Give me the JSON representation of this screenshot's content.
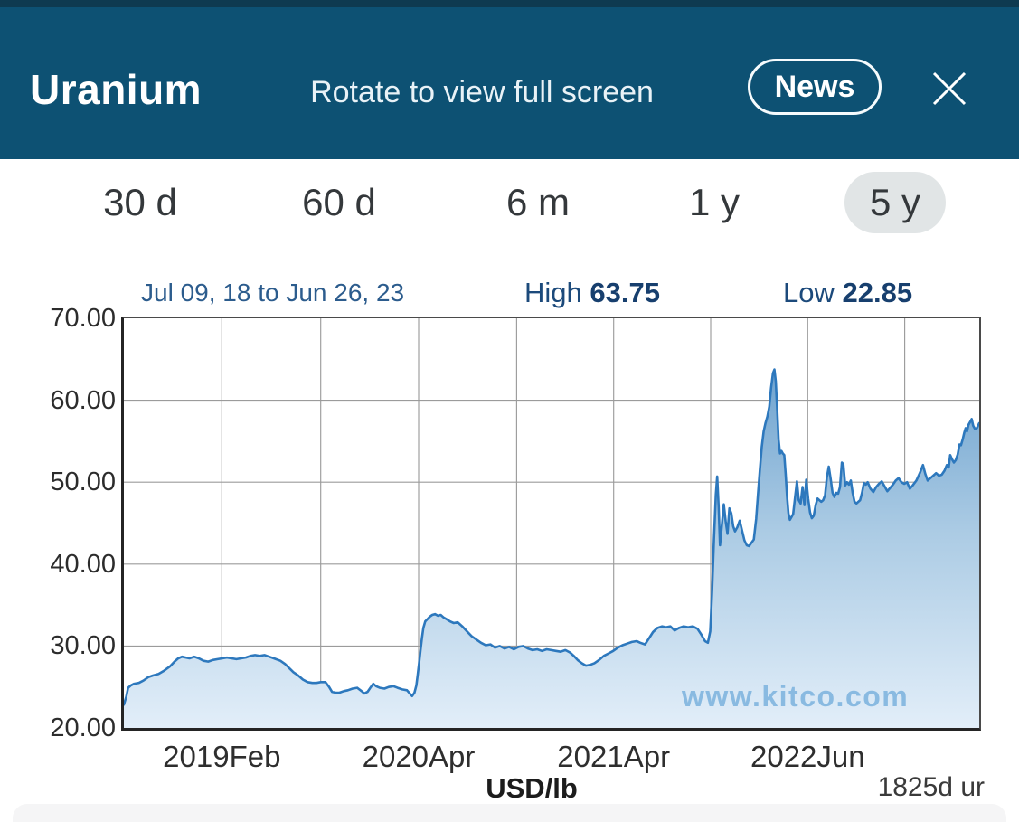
{
  "colors": {
    "statusbar_bg": "#0e3a50",
    "header_bg": "#0d5173",
    "navy": "#1c4a7b",
    "watermark": "#89bae1",
    "range_pill_bg": "#e1e5e6",
    "range_text": "#34383b"
  },
  "header": {
    "title": "Uranium",
    "subtitle": "Rotate to view full screen",
    "news_button": "News"
  },
  "ranges": {
    "items": [
      "30 d",
      "60 d",
      "6 m",
      "1 y",
      "5 y"
    ],
    "selected": "5 y"
  },
  "chart_meta": {
    "period_label": "Jul 09, 18 to Jun 26, 23",
    "high_label": "High",
    "high_value": "63.75",
    "low_label": "Low",
    "low_value": "22.85",
    "unit_label": "USD/lb",
    "duration_label": "1825d ur",
    "watermark": "www.kitco.com"
  },
  "chart_data": {
    "type": "area",
    "title": "Uranium spot price, 5 year",
    "x_start": "Jul 09, 18",
    "x_end": "Jun 26, 23",
    "x_range_days": 1825,
    "ylim": [
      20,
      70
    ],
    "ylabel": "USD/lb",
    "high": 63.75,
    "low": 22.85,
    "grid": true,
    "y_tick_labels": [
      "70.00",
      "60.00",
      "50.00",
      "40.00",
      "30.00",
      "20.00"
    ],
    "y_gridlines": [
      60,
      50,
      40,
      30
    ],
    "x_gridline_days": [
      209,
      420,
      629,
      838,
      1045,
      1252,
      1459,
      1666
    ],
    "x_labels": [
      {
        "day": 209,
        "text": "2019Feb"
      },
      {
        "day": 629,
        "text": "2020Apr"
      },
      {
        "day": 1045,
        "text": "2021Apr"
      },
      {
        "day": 1459,
        "text": "2022Jun"
      }
    ],
    "line_color": "#2d78bd",
    "fill_gradient": [
      {
        "offset": "0%",
        "color": "#6fa3cf"
      },
      {
        "offset": "45%",
        "color": "#abcbe4"
      },
      {
        "offset": "100%",
        "color": "#e2eef9"
      }
    ],
    "points": [
      [
        0,
        22.85
      ],
      [
        5,
        23.8
      ],
      [
        9,
        24.9
      ],
      [
        15,
        25.2
      ],
      [
        22,
        25.4
      ],
      [
        32,
        25.5
      ],
      [
        42,
        25.8
      ],
      [
        52,
        26.2
      ],
      [
        62,
        26.4
      ],
      [
        74,
        26.6
      ],
      [
        86,
        27.0
      ],
      [
        98,
        27.5
      ],
      [
        108,
        28.1
      ],
      [
        116,
        28.5
      ],
      [
        124,
        28.7
      ],
      [
        132,
        28.6
      ],
      [
        140,
        28.5
      ],
      [
        150,
        28.7
      ],
      [
        160,
        28.5
      ],
      [
        170,
        28.2
      ],
      [
        180,
        28.1
      ],
      [
        190,
        28.3
      ],
      [
        200,
        28.4
      ],
      [
        210,
        28.5
      ],
      [
        220,
        28.6
      ],
      [
        230,
        28.5
      ],
      [
        240,
        28.4
      ],
      [
        250,
        28.5
      ],
      [
        260,
        28.6
      ],
      [
        270,
        28.8
      ],
      [
        280,
        28.9
      ],
      [
        290,
        28.8
      ],
      [
        300,
        28.9
      ],
      [
        310,
        28.7
      ],
      [
        320,
        28.5
      ],
      [
        334,
        28.2
      ],
      [
        344,
        27.8
      ],
      [
        353,
        27.3
      ],
      [
        362,
        26.8
      ],
      [
        372,
        26.4
      ],
      [
        382,
        25.9
      ],
      [
        392,
        25.6
      ],
      [
        402,
        25.5
      ],
      [
        411,
        25.5
      ],
      [
        420,
        25.6
      ],
      [
        430,
        25.6
      ],
      [
        438,
        25.0
      ],
      [
        444,
        24.4
      ],
      [
        452,
        24.3
      ],
      [
        460,
        24.3
      ],
      [
        470,
        24.5
      ],
      [
        478,
        24.6
      ],
      [
        488,
        24.8
      ],
      [
        498,
        24.9
      ],
      [
        507,
        24.5
      ],
      [
        513,
        24.2
      ],
      [
        520,
        24.4
      ],
      [
        527,
        25.0
      ],
      [
        532,
        25.4
      ],
      [
        538,
        25.1
      ],
      [
        546,
        24.9
      ],
      [
        556,
        24.8
      ],
      [
        565,
        25.0
      ],
      [
        575,
        25.1
      ],
      [
        584,
        24.9
      ],
      [
        594,
        24.7
      ],
      [
        604,
        24.6
      ],
      [
        610,
        24.2
      ],
      [
        615,
        23.9
      ],
      [
        620,
        24.3
      ],
      [
        624,
        25.2
      ],
      [
        627,
        26.5
      ],
      [
        630,
        28.0
      ],
      [
        633,
        29.5
      ],
      [
        636,
        31.0
      ],
      [
        639,
        32.2
      ],
      [
        643,
        33.0
      ],
      [
        648,
        33.3
      ],
      [
        653,
        33.6
      ],
      [
        658,
        33.8
      ],
      [
        664,
        33.9
      ],
      [
        670,
        33.7
      ],
      [
        676,
        33.8
      ],
      [
        682,
        33.5
      ],
      [
        688,
        33.3
      ],
      [
        696,
        33.0
      ],
      [
        704,
        32.8
      ],
      [
        712,
        32.9
      ],
      [
        722,
        32.4
      ],
      [
        732,
        31.8
      ],
      [
        742,
        31.2
      ],
      [
        752,
        30.8
      ],
      [
        762,
        30.4
      ],
      [
        772,
        30.1
      ],
      [
        782,
        30.2
      ],
      [
        792,
        29.8
      ],
      [
        802,
        30.0
      ],
      [
        812,
        29.7
      ],
      [
        822,
        29.9
      ],
      [
        832,
        29.6
      ],
      [
        842,
        29.9
      ],
      [
        852,
        30.0
      ],
      [
        862,
        29.7
      ],
      [
        872,
        29.5
      ],
      [
        882,
        29.6
      ],
      [
        892,
        29.4
      ],
      [
        902,
        29.6
      ],
      [
        912,
        29.5
      ],
      [
        922,
        29.4
      ],
      [
        932,
        29.3
      ],
      [
        942,
        29.5
      ],
      [
        952,
        29.2
      ],
      [
        960,
        28.8
      ],
      [
        968,
        28.3
      ],
      [
        977,
        27.9
      ],
      [
        986,
        27.6
      ],
      [
        995,
        27.7
      ],
      [
        1004,
        27.9
      ],
      [
        1014,
        28.3
      ],
      [
        1024,
        28.8
      ],
      [
        1034,
        29.1
      ],
      [
        1044,
        29.4
      ],
      [
        1054,
        29.8
      ],
      [
        1064,
        30.1
      ],
      [
        1074,
        30.3
      ],
      [
        1084,
        30.5
      ],
      [
        1094,
        30.6
      ],
      [
        1102,
        30.4
      ],
      [
        1112,
        30.2
      ],
      [
        1120,
        30.9
      ],
      [
        1129,
        31.7
      ],
      [
        1138,
        32.2
      ],
      [
        1148,
        32.4
      ],
      [
        1157,
        32.3
      ],
      [
        1166,
        32.4
      ],
      [
        1175,
        31.9
      ],
      [
        1184,
        32.2
      ],
      [
        1194,
        32.4
      ],
      [
        1204,
        32.3
      ],
      [
        1214,
        32.4
      ],
      [
        1224,
        32.1
      ],
      [
        1232,
        31.4
      ],
      [
        1240,
        30.6
      ],
      [
        1246,
        30.4
      ],
      [
        1251,
        31.8
      ],
      [
        1255,
        36.5
      ],
      [
        1259,
        43.0
      ],
      [
        1263,
        48.5
      ],
      [
        1266,
        50.7
      ],
      [
        1269,
        47.0
      ],
      [
        1272,
        42.3
      ],
      [
        1276,
        44.8
      ],
      [
        1280,
        47.3
      ],
      [
        1284,
        45.2
      ],
      [
        1288,
        43.7
      ],
      [
        1292,
        46.8
      ],
      [
        1296,
        46.2
      ],
      [
        1300,
        44.6
      ],
      [
        1304,
        44.0
      ],
      [
        1309,
        44.5
      ],
      [
        1314,
        45.3
      ],
      [
        1319,
        44.1
      ],
      [
        1324,
        42.9
      ],
      [
        1329,
        42.3
      ],
      [
        1334,
        42.2
      ],
      [
        1339,
        42.6
      ],
      [
        1344,
        43.0
      ],
      [
        1349,
        45.5
      ],
      [
        1353,
        48.5
      ],
      [
        1357,
        51.5
      ],
      [
        1361,
        54.3
      ],
      [
        1365,
        56.2
      ],
      [
        1369,
        57.2
      ],
      [
        1373,
        58.0
      ],
      [
        1377,
        59.2
      ],
      [
        1381,
        61.5
      ],
      [
        1385,
        63.3
      ],
      [
        1388,
        63.75
      ],
      [
        1391,
        62.3
      ],
      [
        1394,
        58.8
      ],
      [
        1397,
        55.2
      ],
      [
        1400,
        53.5
      ],
      [
        1403,
        53.8
      ],
      [
        1406,
        53.5
      ],
      [
        1409,
        53.3
      ],
      [
        1412,
        51.0
      ],
      [
        1415,
        48.2
      ],
      [
        1418,
        46.2
      ],
      [
        1421,
        45.4
      ],
      [
        1424,
        45.7
      ],
      [
        1428,
        46.1
      ],
      [
        1432,
        48.1
      ],
      [
        1436,
        50.1
      ],
      [
        1440,
        47.8
      ],
      [
        1444,
        47.4
      ],
      [
        1448,
        49.4
      ],
      [
        1452,
        47.2
      ],
      [
        1456,
        50.3
      ],
      [
        1460,
        48.0
      ],
      [
        1464,
        46.3
      ],
      [
        1468,
        45.6
      ],
      [
        1472,
        45.9
      ],
      [
        1476,
        47.2
      ],
      [
        1480,
        48.0
      ],
      [
        1484,
        47.8
      ],
      [
        1488,
        47.6
      ],
      [
        1492,
        47.8
      ],
      [
        1496,
        48.4
      ],
      [
        1500,
        50.6
      ],
      [
        1504,
        51.9
      ],
      [
        1508,
        50.4
      ],
      [
        1512,
        48.7
      ],
      [
        1516,
        48.2
      ],
      [
        1520,
        48.7
      ],
      [
        1524,
        48.6
      ],
      [
        1528,
        49.4
      ],
      [
        1532,
        52.4
      ],
      [
        1535,
        52.2
      ],
      [
        1539,
        49.6
      ],
      [
        1543,
        50.0
      ],
      [
        1547,
        49.7
      ],
      [
        1551,
        50.2
      ],
      [
        1555,
        48.7
      ],
      [
        1559,
        47.6
      ],
      [
        1563,
        47.4
      ],
      [
        1567,
        47.6
      ],
      [
        1571,
        47.8
      ],
      [
        1575,
        48.7
      ],
      [
        1579,
        49.9
      ],
      [
        1583,
        49.7
      ],
      [
        1587,
        50.0
      ],
      [
        1593,
        49.2
      ],
      [
        1599,
        48.8
      ],
      [
        1605,
        49.4
      ],
      [
        1611,
        49.8
      ],
      [
        1617,
        50.1
      ],
      [
        1623,
        49.5
      ],
      [
        1629,
        48.9
      ],
      [
        1635,
        49.3
      ],
      [
        1641,
        49.7
      ],
      [
        1647,
        50.2
      ],
      [
        1653,
        50.5
      ],
      [
        1659,
        50.0
      ],
      [
        1665,
        49.8
      ],
      [
        1671,
        50.0
      ],
      [
        1677,
        49.2
      ],
      [
        1683,
        49.6
      ],
      [
        1691,
        50.2
      ],
      [
        1699,
        51.2
      ],
      [
        1705,
        52.1
      ],
      [
        1710,
        51.0
      ],
      [
        1715,
        50.2
      ],
      [
        1721,
        50.5
      ],
      [
        1727,
        50.8
      ],
      [
        1733,
        51.1
      ],
      [
        1739,
        50.8
      ],
      [
        1745,
        50.9
      ],
      [
        1751,
        51.4
      ],
      [
        1756,
        52.1
      ],
      [
        1760,
        51.8
      ],
      [
        1763,
        53.3
      ],
      [
        1767,
        52.8
      ],
      [
        1771,
        52.4
      ],
      [
        1775,
        52.7
      ],
      [
        1779,
        53.4
      ],
      [
        1783,
        54.6
      ],
      [
        1786,
        54.5
      ],
      [
        1790,
        55.3
      ],
      [
        1793,
        56.0
      ],
      [
        1796,
        56.6
      ],
      [
        1799,
        56.2
      ],
      [
        1802,
        57.0
      ],
      [
        1806,
        57.4
      ],
      [
        1809,
        57.7
      ],
      [
        1812,
        56.9
      ],
      [
        1816,
        56.5
      ],
      [
        1820,
        56.6
      ],
      [
        1825,
        57.2
      ]
    ]
  }
}
